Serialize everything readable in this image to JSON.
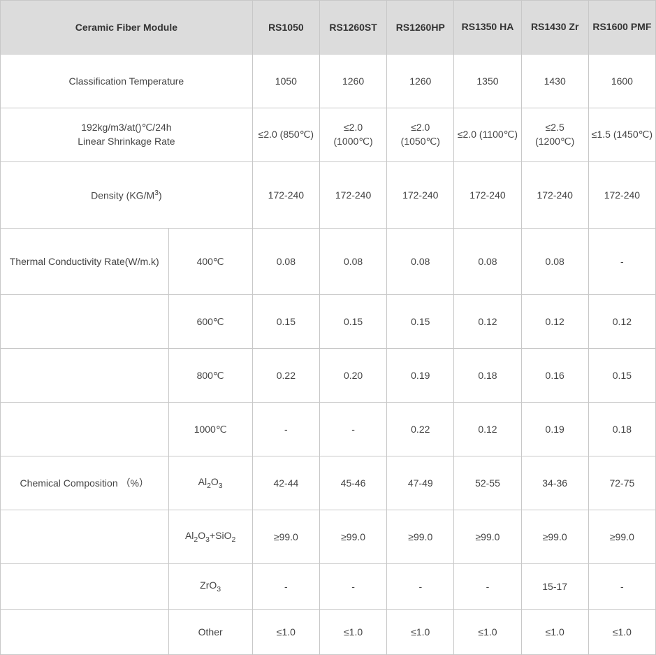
{
  "table": {
    "colors": {
      "header_bg": "#dcdcdc",
      "border": "#c8c8c8",
      "text": "#444444",
      "header_text": "#333333",
      "body_bg": "#ffffff"
    },
    "header": {
      "title": "Ceramic Fiber Module",
      "products": [
        "RS1050",
        "RS1260ST",
        "RS1260HP",
        "RS1350 HA",
        "RS1430 Zr",
        "RS1600 PMF"
      ]
    },
    "rows": {
      "classification": {
        "label": "Classification Temperature",
        "values": [
          "1050",
          "1260",
          "1260",
          "1350",
          "1430",
          "1600"
        ]
      },
      "shrinkage": {
        "label_line1": "192kg/m3/at()℃/24h",
        "label_line2": "Linear Shrinkage Rate",
        "values": [
          "≤2.0 (850℃)",
          "≤2.0 (1000℃)",
          "≤2.0 (1050℃)",
          "≤2.0 (1100℃)",
          "≤2.5 (1200℃)",
          "≤1.5 (1450℃)"
        ]
      },
      "density": {
        "label_html": "Density (KG/M<sup>3</sup>)",
        "label_plain": "Density (KG/M3)",
        "values": [
          "172-240",
          "172-240",
          "172-240",
          "172-240",
          "172-240",
          "172-240"
        ]
      },
      "thermal": {
        "label": "Thermal Conductivity Rate(W/m.k)",
        "sub": [
          {
            "temp": "400℃",
            "values": [
              "0.08",
              "0.08",
              "0.08",
              "0.08",
              "0.08",
              "-"
            ]
          },
          {
            "temp": "600℃",
            "values": [
              "0.15",
              "0.15",
              "0.15",
              "0.12",
              "0.12",
              "0.12"
            ]
          },
          {
            "temp": "800℃",
            "values": [
              "0.22",
              "0.20",
              "0.19",
              "0.18",
              "0.16",
              "0.15"
            ]
          },
          {
            "temp": "1000℃",
            "values": [
              "-",
              "-",
              "0.22",
              "0.12",
              "0.19",
              "0.18"
            ]
          }
        ]
      },
      "chemical": {
        "label": "Chemical Composition （%）",
        "sub": [
          {
            "comp_html": "Al<sub>2</sub>O<sub>3</sub>",
            "comp_plain": "Al2O3",
            "values": [
              "42-44",
              "45-46",
              "47-49",
              "52-55",
              "34-36",
              "72-75"
            ]
          },
          {
            "comp_html": "Al<sub>2</sub>O<sub>3</sub>+SiO<sub>2</sub>",
            "comp_plain": "Al2O3+SiO2",
            "values": [
              "≥99.0",
              "≥99.0",
              "≥99.0",
              "≥99.0",
              "≥99.0",
              "≥99.0"
            ]
          },
          {
            "comp_html": "ZrO<sub>3</sub>",
            "comp_plain": "ZrO3",
            "values": [
              "-",
              "-",
              "-",
              "-",
              "15-17",
              "-"
            ]
          },
          {
            "comp_html": "Other",
            "comp_plain": "Other",
            "values": [
              "≤1.0",
              "≤1.0",
              "≤1.0",
              "≤1.0",
              "≤1.0",
              "≤1.0"
            ]
          }
        ]
      }
    }
  }
}
